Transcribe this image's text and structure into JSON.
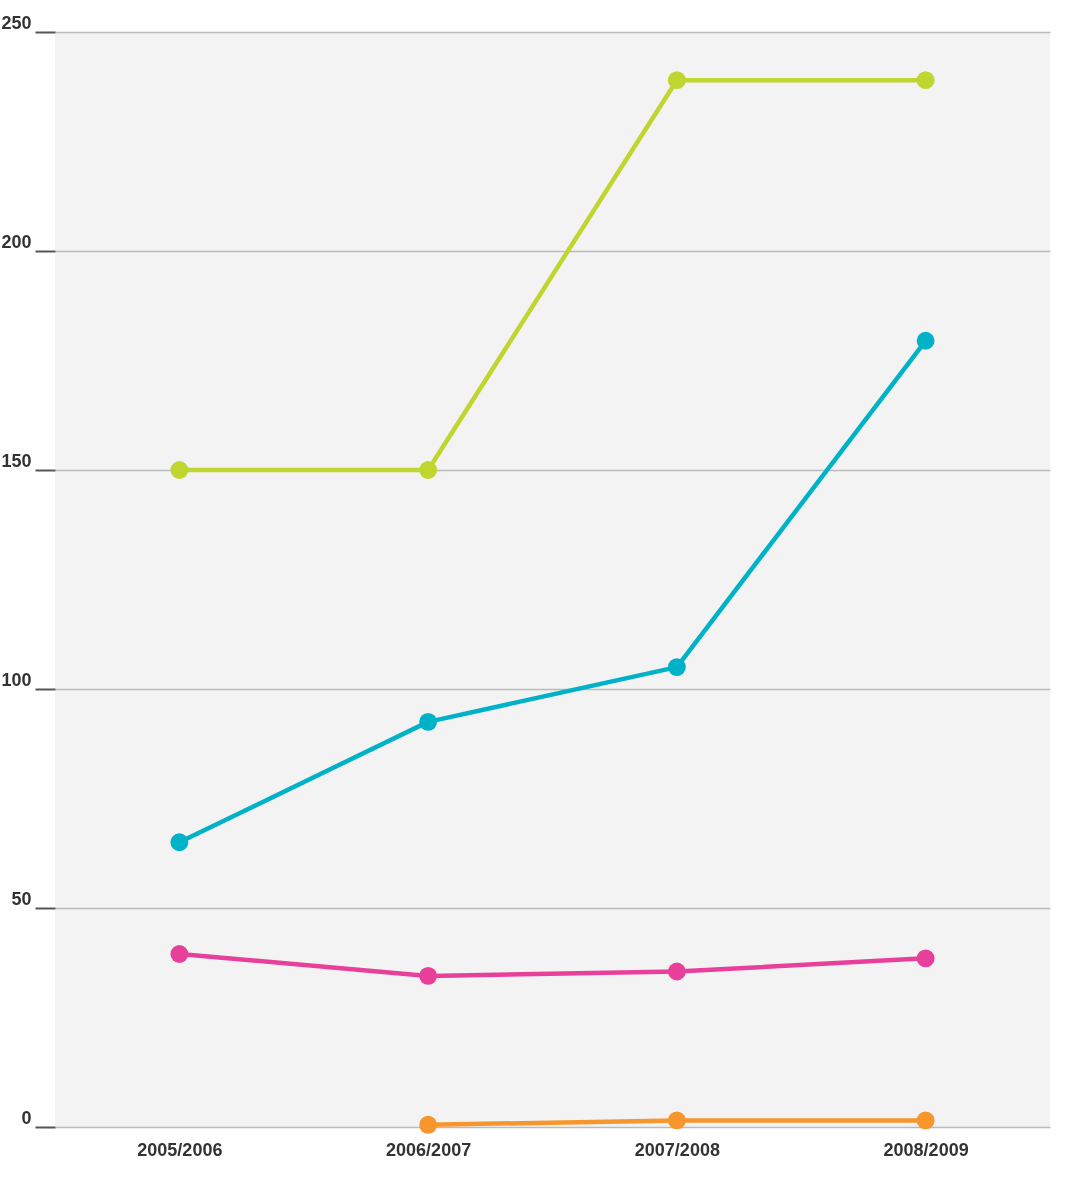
{
  "chart_data": {
    "type": "line",
    "categories": [
      "2005/2006",
      "2006/2007",
      "2007/2008",
      "2008/2009"
    ],
    "series": [
      {
        "color": "#c0d630",
        "values": [
          150,
          150,
          239,
          239
        ]
      },
      {
        "color": "#00b2c8",
        "values": [
          65,
          92.5,
          105,
          179.5
        ]
      },
      {
        "color": "#e8409a",
        "values": [
          39.5,
          34.5,
          35.5,
          38.5
        ]
      },
      {
        "color": "#f7962c",
        "values": [
          null,
          0.5,
          1.5,
          1.5
        ]
      }
    ],
    "ylim": [
      0,
      250
    ],
    "yticks": [
      0,
      50,
      100,
      150,
      200,
      250
    ],
    "grid": "y",
    "marker": "circle",
    "line_style": "solid",
    "legend": false
  }
}
